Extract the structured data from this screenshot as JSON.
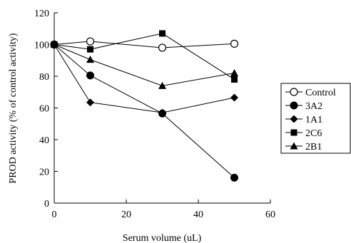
{
  "chart_data": {
    "type": "line",
    "title": "",
    "xlabel": "Serum volume (uL)",
    "ylabel": "PROD activity (% of control activity)",
    "xlim": [
      0,
      60
    ],
    "ylim": [
      0,
      120
    ],
    "xticks": [
      0,
      20,
      40,
      60
    ],
    "yticks": [
      0,
      20,
      40,
      60,
      80,
      100,
      120
    ],
    "grid": false,
    "legend_position": "right",
    "x": [
      0,
      10,
      30,
      50
    ],
    "series": [
      {
        "name": "Control",
        "marker": "circle-open",
        "values": [
          100,
          102,
          98,
          100.5
        ]
      },
      {
        "name": "3A2",
        "marker": "circle",
        "values": [
          100,
          80.5,
          56.5,
          16
        ]
      },
      {
        "name": "1A1",
        "marker": "diamond",
        "values": [
          100,
          63.5,
          57,
          66.5
        ]
      },
      {
        "name": "2C6",
        "marker": "square",
        "values": [
          100,
          97,
          107,
          78
        ]
      },
      {
        "name": "2B1",
        "marker": "triangle",
        "values": [
          100,
          90.5,
          74,
          82
        ]
      }
    ]
  }
}
